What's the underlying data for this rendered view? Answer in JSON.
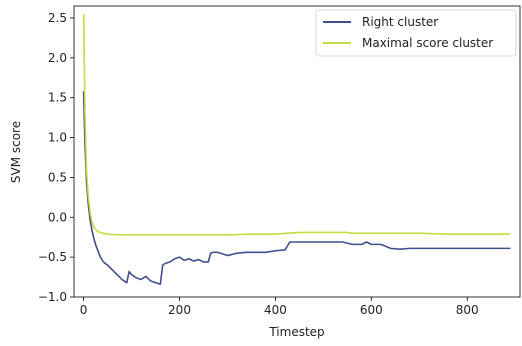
{
  "chart_data": {
    "type": "line",
    "title": "",
    "xlabel": "Timestep",
    "ylabel": "SVM score",
    "xlim": [
      -20,
      910
    ],
    "ylim": [
      -1.0,
      2.65
    ],
    "xticks": [
      0,
      200,
      400,
      600,
      800
    ],
    "yticks": [
      -1.0,
      -0.5,
      0.0,
      0.5,
      1.0,
      1.5,
      2.0,
      2.5
    ],
    "ytick_labels": [
      "−1.0",
      "−0.5",
      "0.0",
      "0.5",
      "1.0",
      "1.5",
      "2.0",
      "2.5"
    ],
    "grid": false,
    "legend_position": "top-right",
    "series": [
      {
        "name": "Right cluster",
        "color": "#414f8f",
        "x": [
          0,
          3,
          6,
          10,
          14,
          18,
          22,
          26,
          30,
          35,
          40,
          45,
          50,
          60,
          70,
          80,
          90,
          95,
          100,
          110,
          120,
          130,
          140,
          150,
          160,
          165,
          170,
          180,
          190,
          200,
          210,
          220,
          230,
          240,
          250,
          260,
          265,
          270,
          280,
          300,
          320,
          340,
          360,
          380,
          400,
          420,
          430,
          440,
          460,
          480,
          500,
          520,
          540,
          560,
          580,
          590,
          600,
          620,
          640,
          660,
          680,
          700,
          720,
          740,
          760,
          780,
          800,
          820,
          840,
          860,
          880,
          890
        ],
        "y": [
          1.58,
          0.9,
          0.45,
          0.15,
          -0.05,
          -0.18,
          -0.28,
          -0.36,
          -0.42,
          -0.5,
          -0.55,
          -0.58,
          -0.6,
          -0.66,
          -0.72,
          -0.78,
          -0.82,
          -0.68,
          -0.72,
          -0.76,
          -0.78,
          -0.74,
          -0.8,
          -0.82,
          -0.84,
          -0.6,
          -0.58,
          -0.56,
          -0.52,
          -0.5,
          -0.54,
          -0.52,
          -0.55,
          -0.53,
          -0.56,
          -0.56,
          -0.45,
          -0.44,
          -0.44,
          -0.48,
          -0.45,
          -0.44,
          -0.44,
          -0.44,
          -0.42,
          -0.41,
          -0.31,
          -0.31,
          -0.31,
          -0.31,
          -0.31,
          -0.31,
          -0.31,
          -0.34,
          -0.34,
          -0.31,
          -0.34,
          -0.34,
          -0.39,
          -0.4,
          -0.39,
          -0.39,
          -0.39,
          -0.39,
          -0.39,
          -0.39,
          -0.39,
          -0.39,
          -0.39,
          -0.39,
          -0.39,
          -0.39
        ]
      },
      {
        "name": "Maximal score cluster",
        "color": "#c5de3e",
        "x": [
          0,
          3,
          6,
          10,
          14,
          18,
          22,
          26,
          30,
          35,
          40,
          50,
          60,
          80,
          100,
          150,
          200,
          250,
          300,
          350,
          400,
          450,
          500,
          550,
          560,
          600,
          650,
          700,
          750,
          800,
          850,
          890
        ],
        "y": [
          2.55,
          1.3,
          0.6,
          0.25,
          0.05,
          -0.07,
          -0.13,
          -0.16,
          -0.18,
          -0.19,
          -0.2,
          -0.21,
          -0.215,
          -0.22,
          -0.22,
          -0.22,
          -0.22,
          -0.22,
          -0.22,
          -0.21,
          -0.21,
          -0.19,
          -0.19,
          -0.19,
          -0.2,
          -0.2,
          -0.2,
          -0.2,
          -0.21,
          -0.21,
          -0.21,
          -0.21
        ]
      }
    ]
  }
}
